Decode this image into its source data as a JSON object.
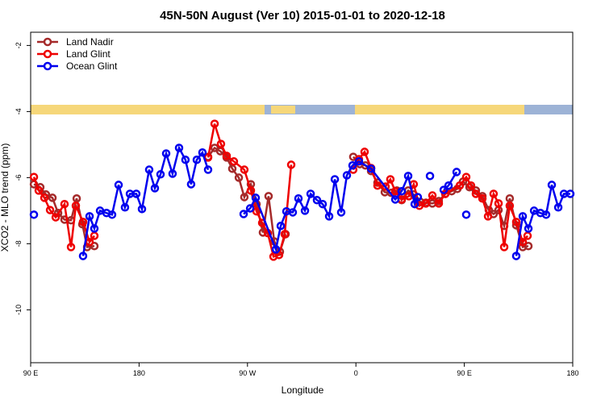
{
  "chart_data": {
    "type": "line",
    "title": "45N-50N August (Ver 10)   2015-01-01 to 2020-12-18",
    "x_label": "Longitude",
    "y_label": "XCO2 - MLO trend (ppm)",
    "xlim": [
      90,
      540
    ],
    "ylim": [
      -11.6,
      -1.6
    ],
    "xticks": [
      {
        "value": 90,
        "label": "90 E"
      },
      180,
      {
        "value": 270,
        "label": "90 W"
      },
      {
        "value": 360,
        "label": "0"
      },
      {
        "value": 450,
        "label": "90 E"
      },
      {
        "value": 540,
        "label": "180"
      }
    ],
    "yticks": [
      -2,
      -4,
      -6,
      -8,
      -10
    ],
    "legend": "top-left",
    "series": [
      {
        "name": "Land Nadir",
        "color": "#a52a2a",
        "x": [
          92.7,
          98,
          102.7,
          108.1,
          112.8,
          118.1,
          123.5,
          128.2,
          132.9,
          136.9,
          142.9,
          null,
          237.3,
          242.7,
          247.4,
          252.7,
          257.4,
          262.8,
          267.4,
          272.8,
          277.5,
          282.8,
          287.5,
          292.2,
          296.9,
          301.6,
          null,
          357.8,
          363.2,
          367.9,
          372.6,
          377.9,
          384,
          389.3,
          394,
          398,
          403.4,
          408,
          413.4,
          418.1,
          423.5,
          428.8,
          434.2,
          439.5,
          444.2,
          448.9,
          454.3,
          459.6,
          465,
          470.3,
          474.3,
          478.4,
          483.1,
          487.7,
          493.1,
          498.5,
          503.2
        ],
        "values": [
          -6.2,
          -6.29,
          -6.51,
          -6.61,
          -7.07,
          -7.27,
          -7.29,
          -6.63,
          -7.41,
          -8.1,
          -8.07,
          null,
          -5.37,
          -5.1,
          -5.2,
          -5.39,
          -5.73,
          -6.0,
          -6.59,
          -6.2,
          -6.8,
          -7.66,
          -6.56,
          -7.93,
          -8.24,
          -7.71,
          null,
          -5.37,
          -5.59,
          -5.63,
          -5.8,
          -6.15,
          -6.44,
          -6.46,
          -6.39,
          -6.68,
          -6.39,
          -6.51,
          -6.73,
          -6.76,
          -6.78,
          -6.71,
          -6.49,
          -6.41,
          -6.34,
          -6.12,
          -6.29,
          -6.39,
          -6.56,
          -6.98,
          -7.1,
          -6.98,
          -7.46,
          -6.63,
          -7.44,
          -8.1,
          -8.07
        ]
      },
      {
        "name": "Land Glint",
        "color": "#ee0000",
        "x": [
          92.7,
          96.7,
          101.4,
          106.1,
          110.8,
          118.1,
          123.5,
          127.5,
          133.5,
          138.9,
          142.9,
          null,
          237.3,
          242.7,
          248,
          252.7,
          258.7,
          267.4,
          272.8,
          277.5,
          282.2,
          286.9,
          291.6,
          296.2,
          300.9,
          306.3,
          null,
          357.8,
          362.5,
          367.2,
          372.6,
          377.9,
          384.6,
          388.6,
          392.7,
          398,
          404,
          408,
          412.7,
          418.1,
          423.5,
          428.8,
          434.2,
          446.2,
          451.6,
          455.6,
          459.6,
          465,
          469.7,
          474.3,
          478.4,
          483.1,
          487.7,
          493.1,
          498.5,
          502.5
        ],
        "values": [
          -5.98,
          -6.39,
          -6.61,
          -6.98,
          -7.2,
          -6.8,
          -8.1,
          -6.85,
          -7.34,
          -7.95,
          -7.76,
          null,
          -5.39,
          -4.37,
          -4.98,
          -5.34,
          -5.51,
          -5.76,
          -6.39,
          -7.02,
          -7.37,
          -7.68,
          -8.39,
          -8.34,
          -7.71,
          -5.61,
          null,
          -5.76,
          -5.44,
          -5.22,
          -5.71,
          -6.24,
          -6.27,
          -6.05,
          -6.41,
          -6.66,
          -6.56,
          -6.2,
          -6.85,
          -6.78,
          -6.54,
          -6.78,
          -6.49,
          -6.24,
          -5.98,
          -6.24,
          -6.49,
          -6.63,
          -7.17,
          -6.49,
          -6.78,
          -8.1,
          -6.85,
          -7.34,
          -7.95,
          -7.76
        ]
      },
      {
        "name": "Ocean Glint",
        "color": "#0000ee",
        "x": [
          92.7,
          null,
          133.5,
          138.9,
          142.9,
          147.6,
          153,
          157.6,
          163,
          168.3,
          172.4,
          177.7,
          182.4,
          188.4,
          193.1,
          197.8,
          202.5,
          207.8,
          213.2,
          218.5,
          223.2,
          227.9,
          232.6,
          237.3,
          null,
          266.8,
          272.2,
          276.8,
          293.6,
          297.6,
          302.3,
          307.6,
          312.3,
          317.7,
          322.4,
          327.7,
          332.4,
          337.8,
          342.5,
          347.8,
          352.5,
          357.2,
          362.5,
          372.6,
          392.7,
          398,
          403.4,
          408.8,
          411.4,
          null,
          421.5,
          null,
          432.9,
          436.9,
          443.6,
          null,
          451.6,
          null,
          493.1,
          498.5,
          503.2,
          507.9,
          513.2,
          517.9,
          522.6,
          528,
          532.7,
          538
        ],
        "values": [
          -7.12,
          null,
          -8.37,
          -7.17,
          -7.54,
          -7.0,
          -7.07,
          -7.12,
          -6.22,
          -6.9,
          -6.49,
          -6.49,
          -6.95,
          -5.76,
          -6.32,
          -5.9,
          -5.27,
          -5.88,
          -5.1,
          -5.46,
          -6.2,
          -5.46,
          -5.24,
          -5.76,
          null,
          -7.1,
          -6.93,
          -6.61,
          -8.17,
          -7.46,
          -7.02,
          -7.05,
          -6.63,
          -7.0,
          -6.49,
          -6.68,
          -6.8,
          -7.17,
          -6.05,
          -7.05,
          -5.93,
          -5.63,
          -5.51,
          -5.73,
          -6.66,
          -6.41,
          -5.95,
          -6.8,
          -6.59,
          null,
          -5.95,
          null,
          -6.37,
          -6.24,
          -5.83,
          null,
          -7.12,
          null,
          -8.37,
          -7.17,
          -7.54,
          -7.0,
          -7.07,
          -7.12,
          -6.22,
          -6.9,
          -6.49,
          -6.49
        ]
      }
    ]
  }
}
